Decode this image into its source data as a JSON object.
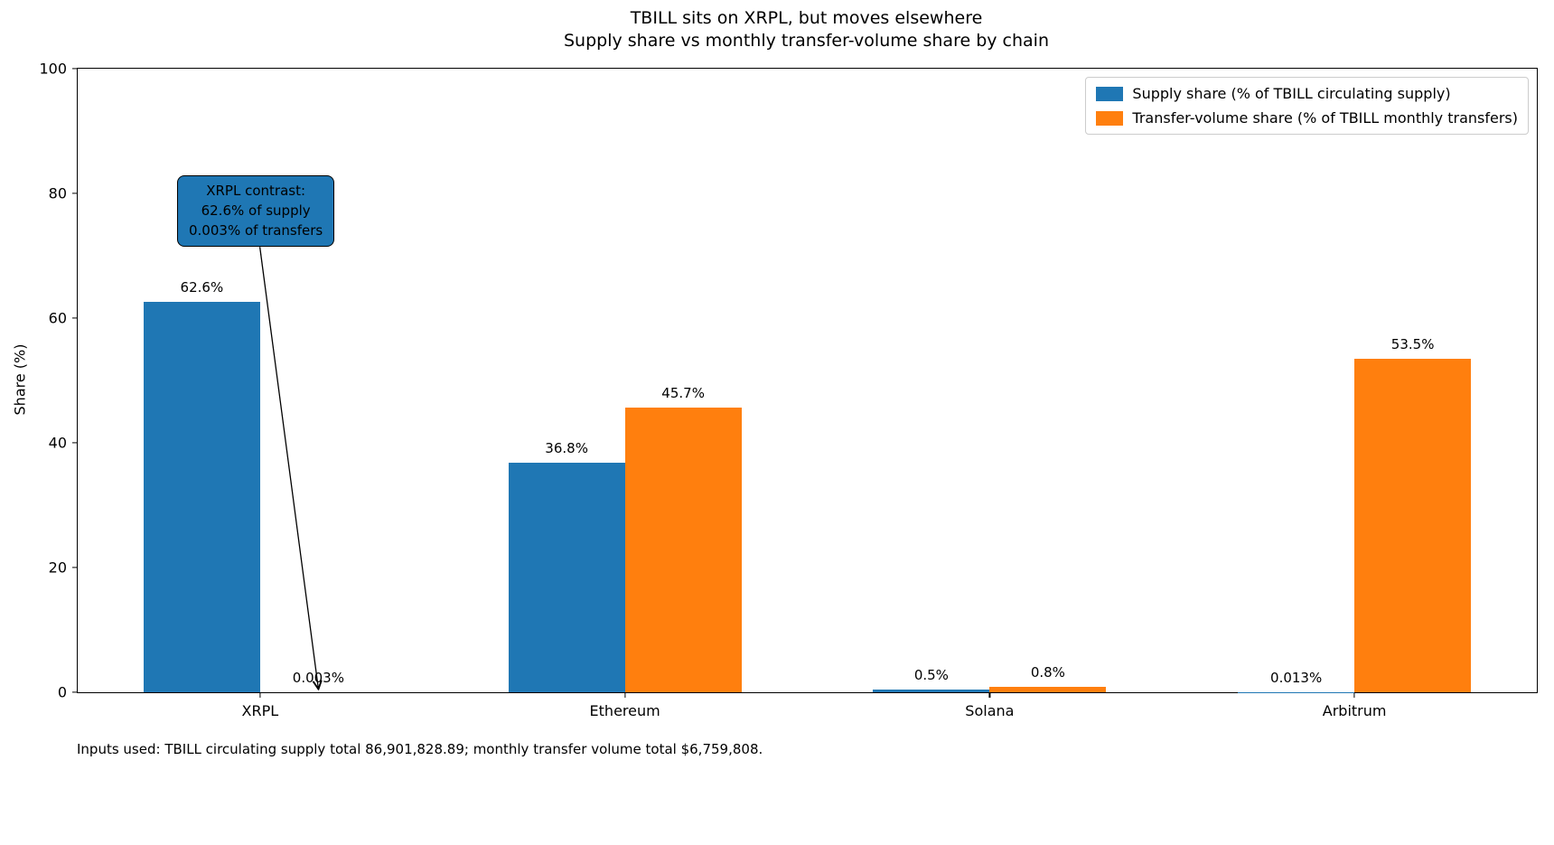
{
  "chart_data": {
    "type": "bar",
    "title": "TBILL sits on XRPL, but moves elsewhere",
    "subtitle": "Supply share vs monthly transfer-volume share by chain",
    "ylabel": "Share (%)",
    "ylim": [
      0,
      100
    ],
    "yticks": [
      0,
      20,
      40,
      60,
      80,
      100
    ],
    "categories": [
      "XRPL",
      "Ethereum",
      "Solana",
      "Arbitrum"
    ],
    "series": [
      {
        "id": "supply-share",
        "name": "Supply share (% of TBILL circulating supply)",
        "color": "#1f77b4",
        "values": [
          62.6,
          36.8,
          0.5,
          0.013
        ],
        "labels": [
          "62.6%",
          "36.8%",
          "0.5%",
          "0.013%"
        ]
      },
      {
        "id": "transfer-volume-share",
        "name": "Transfer-volume share (% of TBILL monthly transfers)",
        "color": "#ff7f0e",
        "values": [
          0.003,
          45.7,
          0.8,
          53.5
        ],
        "labels": [
          "0.003%",
          "45.7%",
          "0.8%",
          "53.5%"
        ]
      }
    ],
    "legend_position": "upper right",
    "grid": false,
    "annotation": {
      "lines": [
        "XRPL contrast:",
        "62.6% of supply",
        "0.003% of transfers"
      ],
      "bg_color": "#1f77b4",
      "target_category": "XRPL",
      "target_series": "transfer-volume-share"
    },
    "footnote": "Inputs used: TBILL circulating supply total 86,901,828.89; monthly transfer volume total $6,759,808."
  }
}
